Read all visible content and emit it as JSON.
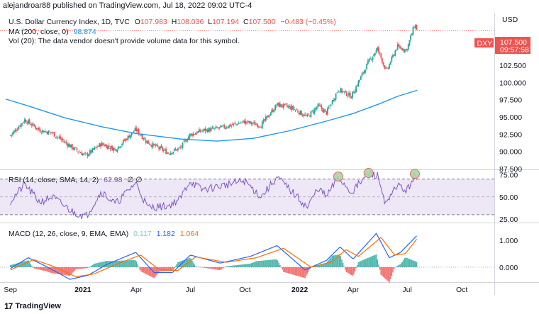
{
  "header": {
    "publish_line": "alejandroar88 published on TradingView.com, Jul 18, 2022 09:02 UTC-4",
    "currency": "USD"
  },
  "legend": {
    "symbol": "U.S. Dollar Currency Index, 1D, TVC",
    "o_label": "O",
    "o_value": "107.983",
    "h_label": "H",
    "h_value": "108.036",
    "l_label": "L",
    "l_value": "107.194",
    "c_label": "C",
    "c_value": "107.500",
    "change": "−0.483 (−0.45%)",
    "ma_label": "MA (200, close, 0)",
    "ma_value": "98.874",
    "vol_text": "Vol (20): The data vendor doesn't provide volume data for this symbol."
  },
  "price_badge": {
    "ticker": "DXY",
    "last": "107.500",
    "countdown": "09:57:58"
  },
  "rsi_legend": {
    "label": "RSI (14, close, SMA, 14, 2)",
    "value": "62.98",
    "extra": "∅ ∅"
  },
  "macd_legend": {
    "label": "MACD (12, 26, close, 9, EMA, EMA)",
    "hist": "0.117",
    "macd": "1.182",
    "signal": "1.064"
  },
  "footer": {
    "brand": "TradingView",
    "logo": "17"
  },
  "colors": {
    "up": "#26a69a",
    "down": "#ef5350",
    "ma": "#2196f3",
    "rsi": "#7e57c2",
    "rsi_band": "#ede7f6",
    "macd": "#2962ff",
    "signal": "#ff6d00",
    "hist_up": "#26a69a",
    "hist_down": "#ef5350",
    "highlight": "#a5d6a7",
    "highlight_edge": "#ef5350"
  },
  "chart_data": [
    {
      "type": "candlestick",
      "title": "U.S. Dollar Currency Index, 1D, TVC",
      "x_tick_labels": [
        "Sep",
        "2021",
        "Apr",
        "Jul",
        "Oct",
        "2022",
        "Apr",
        "Jul",
        "Oct"
      ],
      "y_tick_labels": [
        "107.500",
        "105.000",
        "102.500",
        "100.000",
        "97.500",
        "95.000",
        "92.500",
        "90.000",
        "87.500"
      ],
      "ylim": [
        87.5,
        109.5
      ],
      "x_range": [
        "2020-08-24",
        "2022-11-20"
      ],
      "price_path": [
        {
          "t": "2020-09-01",
          "v": 92.3
        },
        {
          "t": "2020-09-25",
          "v": 94.6
        },
        {
          "t": "2020-10-20",
          "v": 93.1
        },
        {
          "t": "2020-11-10",
          "v": 92.7
        },
        {
          "t": "2020-12-15",
          "v": 90.5
        },
        {
          "t": "2021-01-06",
          "v": 89.4
        },
        {
          "t": "2021-02-01",
          "v": 91.1
        },
        {
          "t": "2021-02-25",
          "v": 90.3
        },
        {
          "t": "2021-03-31",
          "v": 93.2
        },
        {
          "t": "2021-04-20",
          "v": 91.3
        },
        {
          "t": "2021-05-25",
          "v": 89.8
        },
        {
          "t": "2021-06-14",
          "v": 90.5
        },
        {
          "t": "2021-06-30",
          "v": 92.4
        },
        {
          "t": "2021-07-20",
          "v": 93.0
        },
        {
          "t": "2021-08-20",
          "v": 93.4
        },
        {
          "t": "2021-09-30",
          "v": 94.3
        },
        {
          "t": "2021-10-28",
          "v": 93.8
        },
        {
          "t": "2021-11-24",
          "v": 96.8
        },
        {
          "t": "2021-12-20",
          "v": 96.3
        },
        {
          "t": "2022-01-14",
          "v": 95.0
        },
        {
          "t": "2022-02-01",
          "v": 96.6
        },
        {
          "t": "2022-02-15",
          "v": 95.6
        },
        {
          "t": "2022-03-07",
          "v": 99.0
        },
        {
          "t": "2022-03-29",
          "v": 98.0
        },
        {
          "t": "2022-04-27",
          "v": 103.0
        },
        {
          "t": "2022-05-12",
          "v": 104.9
        },
        {
          "t": "2022-05-27",
          "v": 101.6
        },
        {
          "t": "2022-06-14",
          "v": 105.2
        },
        {
          "t": "2022-06-30",
          "v": 104.7
        },
        {
          "t": "2022-07-14",
          "v": 108.5
        },
        {
          "t": "2022-07-18",
          "v": 107.5
        }
      ],
      "ma200_path": [
        {
          "t": "2020-08-24",
          "v": 97.6
        },
        {
          "t": "2020-10-01",
          "v": 96.6
        },
        {
          "t": "2020-12-01",
          "v": 94.9
        },
        {
          "t": "2021-02-01",
          "v": 93.6
        },
        {
          "t": "2021-04-01",
          "v": 92.6
        },
        {
          "t": "2021-06-15",
          "v": 91.8
        },
        {
          "t": "2021-08-15",
          "v": 91.5
        },
        {
          "t": "2021-10-15",
          "v": 91.9
        },
        {
          "t": "2021-12-15",
          "v": 93.0
        },
        {
          "t": "2022-02-15",
          "v": 94.4
        },
        {
          "t": "2022-04-01",
          "v": 95.5
        },
        {
          "t": "2022-05-15",
          "v": 96.9
        },
        {
          "t": "2022-06-15",
          "v": 98.0
        },
        {
          "t": "2022-07-18",
          "v": 98.874
        }
      ]
    },
    {
      "type": "line",
      "title": "RSI (14, close, SMA, 14, 2)",
      "y_tick_labels": [
        "75.00",
        "50.00",
        "25.00"
      ],
      "ylim": [
        22,
        80
      ],
      "band": [
        30,
        70
      ],
      "path": [
        {
          "t": "2020-09-01",
          "v": 45
        },
        {
          "t": "2020-09-25",
          "v": 64
        },
        {
          "t": "2020-10-20",
          "v": 44
        },
        {
          "t": "2020-11-10",
          "v": 50
        },
        {
          "t": "2020-12-15",
          "v": 33
        },
        {
          "t": "2021-01-06",
          "v": 28
        },
        {
          "t": "2021-02-01",
          "v": 56
        },
        {
          "t": "2021-02-25",
          "v": 42
        },
        {
          "t": "2021-03-31",
          "v": 66
        },
        {
          "t": "2021-04-20",
          "v": 38
        },
        {
          "t": "2021-05-25",
          "v": 40
        },
        {
          "t": "2021-06-14",
          "v": 48
        },
        {
          "t": "2021-06-30",
          "v": 68
        },
        {
          "t": "2021-07-20",
          "v": 58
        },
        {
          "t": "2021-08-20",
          "v": 62
        },
        {
          "t": "2021-09-30",
          "v": 68
        },
        {
          "t": "2021-10-28",
          "v": 50
        },
        {
          "t": "2021-11-24",
          "v": 72
        },
        {
          "t": "2021-12-20",
          "v": 55
        },
        {
          "t": "2022-01-14",
          "v": 38
        },
        {
          "t": "2022-02-01",
          "v": 60
        },
        {
          "t": "2022-02-15",
          "v": 50
        },
        {
          "t": "2022-03-07",
          "v": 72
        },
        {
          "t": "2022-03-29",
          "v": 55
        },
        {
          "t": "2022-04-27",
          "v": 76
        },
        {
          "t": "2022-05-12",
          "v": 74
        },
        {
          "t": "2022-05-27",
          "v": 40
        },
        {
          "t": "2022-06-14",
          "v": 64
        },
        {
          "t": "2022-06-30",
          "v": 56
        },
        {
          "t": "2022-07-14",
          "v": 75
        },
        {
          "t": "2022-07-18",
          "v": 62.98
        }
      ],
      "highlighted_peaks": [
        "2022-03-07",
        "2022-04-27",
        "2022-07-14"
      ]
    },
    {
      "type": "line",
      "title": "MACD (12, 26, close, 9, EMA, EMA)",
      "y_tick_labels": [
        "1.000",
        "0.000"
      ],
      "ylim": [
        -0.5,
        1.6
      ],
      "series": [
        {
          "name": "MACD",
          "path": [
            {
              "t": "2020-09-01",
              "v": -0.05
            },
            {
              "t": "2020-10-01",
              "v": 0.35
            },
            {
              "t": "2020-11-01",
              "v": 0.02
            },
            {
              "t": "2020-12-10",
              "v": -0.45
            },
            {
              "t": "2021-01-10",
              "v": -0.3
            },
            {
              "t": "2021-02-10",
              "v": 0.1
            },
            {
              "t": "2021-03-31",
              "v": 0.55
            },
            {
              "t": "2021-05-01",
              "v": -0.2
            },
            {
              "t": "2021-06-01",
              "v": -0.2
            },
            {
              "t": "2021-07-01",
              "v": 0.45
            },
            {
              "t": "2021-08-20",
              "v": 0.15
            },
            {
              "t": "2021-10-10",
              "v": 0.4
            },
            {
              "t": "2021-11-24",
              "v": 0.8
            },
            {
              "t": "2022-01-10",
              "v": -0.1
            },
            {
              "t": "2022-02-15",
              "v": 0.25
            },
            {
              "t": "2022-03-10",
              "v": 0.75
            },
            {
              "t": "2022-04-01",
              "v": 0.3
            },
            {
              "t": "2022-05-10",
              "v": 1.25
            },
            {
              "t": "2022-06-01",
              "v": 0.35
            },
            {
              "t": "2022-06-20",
              "v": 0.55
            },
            {
              "t": "2022-07-18",
              "v": 1.182
            }
          ]
        },
        {
          "name": "Signal",
          "path": [
            {
              "t": "2020-09-01",
              "v": -0.1
            },
            {
              "t": "2020-10-10",
              "v": 0.28
            },
            {
              "t": "2020-11-10",
              "v": 0.05
            },
            {
              "t": "2020-12-20",
              "v": -0.35
            },
            {
              "t": "2021-01-20",
              "v": -0.25
            },
            {
              "t": "2021-02-20",
              "v": 0.05
            },
            {
              "t": "2021-04-08",
              "v": 0.45
            },
            {
              "t": "2021-05-10",
              "v": -0.1
            },
            {
              "t": "2021-06-10",
              "v": -0.12
            },
            {
              "t": "2021-07-10",
              "v": 0.38
            },
            {
              "t": "2021-08-30",
              "v": 0.18
            },
            {
              "t": "2021-10-20",
              "v": 0.35
            },
            {
              "t": "2021-12-05",
              "v": 0.7
            },
            {
              "t": "2022-01-20",
              "v": 0.0
            },
            {
              "t": "2022-02-25",
              "v": 0.2
            },
            {
              "t": "2022-03-20",
              "v": 0.65
            },
            {
              "t": "2022-04-10",
              "v": 0.4
            },
            {
              "t": "2022-05-18",
              "v": 1.1
            },
            {
              "t": "2022-06-10",
              "v": 0.45
            },
            {
              "t": "2022-06-28",
              "v": 0.5
            },
            {
              "t": "2022-07-18",
              "v": 1.064
            }
          ]
        }
      ]
    }
  ]
}
